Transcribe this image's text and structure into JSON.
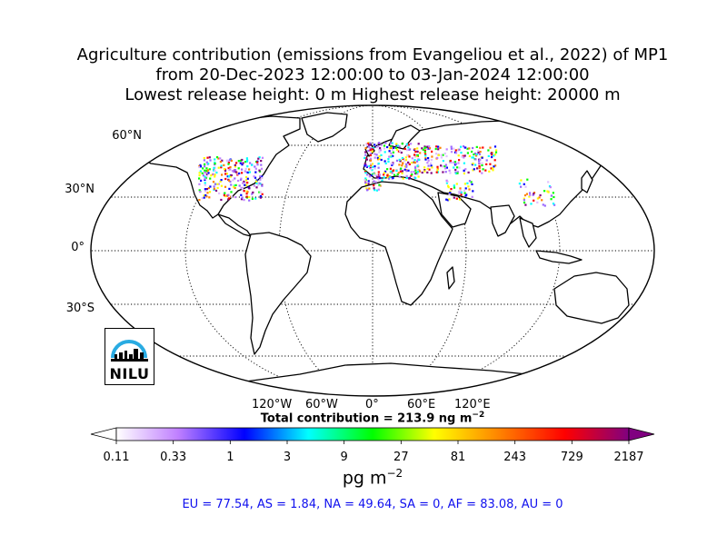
{
  "title": {
    "line1": "Agriculture contribution (emissions from Evangeliou et al., 2022) of MP1",
    "line2": "from 20-Dec-2023 12:00:00 to 03-Jan-2024 12:00:00",
    "line3": "Lowest release height: 0 m       Highest release height: 20000 m"
  },
  "map": {
    "projection": "Robinson",
    "lat_labels": [
      "60°N",
      "30°N",
      "0°",
      "30°S"
    ],
    "lon_labels": [
      "120°W",
      "60°W",
      "0°",
      "60°E",
      "120°E"
    ],
    "colors": {
      "ocean": "#ffffff",
      "coast": "#000000",
      "grid": "#000000"
    }
  },
  "total_label": "Total contribution = 213.9 ng m",
  "total_exp": "−2",
  "colorbar": {
    "ticks": [
      "0.11",
      "0.33",
      "1",
      "3",
      "9",
      "27",
      "81",
      "243",
      "729",
      "2187"
    ],
    "unit": "pg m",
    "unit_exp": "−2",
    "colors": [
      "#ffffff",
      "#c080ff",
      "#0000ff",
      "#00ffff",
      "#00ff00",
      "#ffff00",
      "#ff8000",
      "#ff0000",
      "#800080"
    ]
  },
  "summary": "EU = 77.54,  AS = 1.84,  NA = 49.64,  SA = 0,  AF = 83.08,  AU = 0",
  "logo": {
    "text": "NILU",
    "color": "#29abe2"
  }
}
